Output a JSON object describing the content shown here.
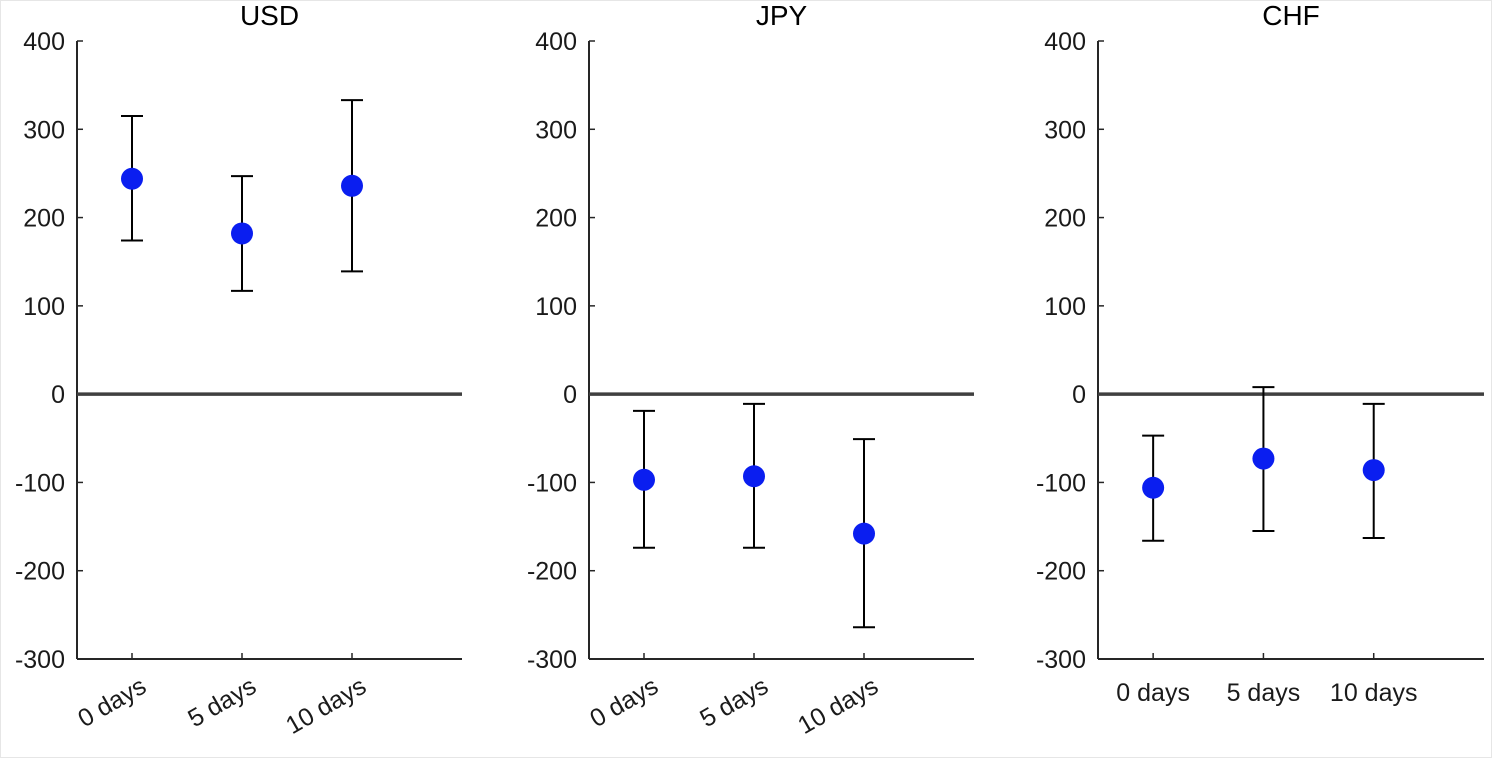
{
  "chart_data": [
    {
      "type": "scatter",
      "title": "USD",
      "xlabel": "",
      "ylabel": "",
      "categories": [
        "0 days",
        "5 days",
        "10 days"
      ],
      "values": [
        244,
        182,
        236
      ],
      "error_low": [
        174,
        117,
        139
      ],
      "error_high": [
        315,
        247,
        333
      ],
      "ylim": [
        -300,
        400
      ],
      "yticks": [
        "400",
        "300",
        "200",
        "100",
        "0",
        "-100",
        "-200",
        "-300"
      ],
      "x_labels_rotated": true,
      "zero_line": true,
      "grid": false,
      "marker_color": "#0a1ef0"
    },
    {
      "type": "scatter",
      "title": "JPY",
      "xlabel": "",
      "ylabel": "",
      "categories": [
        "0 days",
        "5 days",
        "10 days"
      ],
      "values": [
        -97,
        -93,
        -158
      ],
      "error_low": [
        -174,
        -174,
        -264
      ],
      "error_high": [
        -19,
        -11,
        -51
      ],
      "ylim": [
        -300,
        400
      ],
      "yticks": [
        "400",
        "300",
        "200",
        "100",
        "0",
        "-100",
        "-200",
        "-300"
      ],
      "x_labels_rotated": true,
      "zero_line": true,
      "grid": false,
      "marker_color": "#0a1ef0"
    },
    {
      "type": "scatter",
      "title": "CHF",
      "xlabel": "",
      "ylabel": "",
      "categories": [
        "0 days",
        "5 days",
        "10 days"
      ],
      "values": [
        -106,
        -73,
        -86
      ],
      "error_low": [
        -166,
        -155,
        -163
      ],
      "error_high": [
        -47,
        8,
        -11
      ],
      "ylim": [
        -300,
        400
      ],
      "yticks": [
        "400",
        "300",
        "200",
        "100",
        "0",
        "-100",
        "-200",
        "-300"
      ],
      "x_labels_rotated": false,
      "zero_line": true,
      "grid": false,
      "marker_color": "#0a1ef0"
    }
  ]
}
